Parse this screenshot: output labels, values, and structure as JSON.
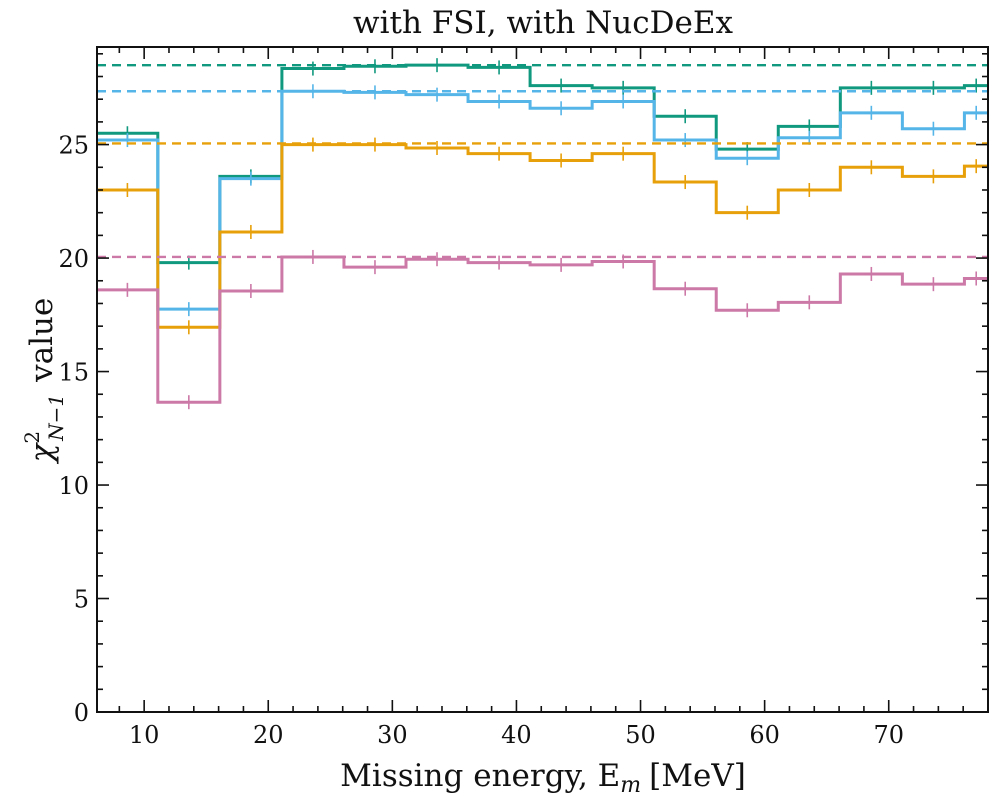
{
  "chart_data": {
    "type": "step",
    "title": "with FSI, with NucDeEx",
    "xlabel": "Missing energy, E",
    "xlabel_sub": "m",
    "xlabel_unit": "[MeV]",
    "ylabel": "χ",
    "ylabel_sup": "2",
    "ylabel_sub": "N−1",
    "ylabel_tail": "value",
    "xlim": [
      6.2,
      78
    ],
    "ylim": [
      0,
      29.3
    ],
    "xticks": [
      10,
      20,
      30,
      40,
      50,
      60,
      70
    ],
    "xtick_labels": [
      "10",
      "20",
      "30",
      "40",
      "50",
      "60",
      "70"
    ],
    "yticks": [
      0,
      5,
      10,
      15,
      20,
      25
    ],
    "ytick_labels": [
      "0",
      "5",
      "10",
      "15",
      "20",
      "25"
    ],
    "bin_edges": [
      6.2,
      11.1,
      16.1,
      21.1,
      26.1,
      31.1,
      36.1,
      41.1,
      46.1,
      51.1,
      56.1,
      61.1,
      66.1,
      71.1,
      76.1,
      78
    ],
    "series": [
      {
        "name": "teal",
        "color": "#11997f",
        "values": [
          25.5,
          19.8,
          23.6,
          28.35,
          28.45,
          28.5,
          28.4,
          27.6,
          27.5,
          26.25,
          24.8,
          25.8,
          27.5,
          27.5,
          27.6
        ],
        "reference": 28.5
      },
      {
        "name": "sky",
        "color": "#55b5e8",
        "values": [
          25.2,
          17.75,
          23.5,
          27.35,
          27.3,
          27.2,
          26.9,
          26.6,
          26.9,
          25.2,
          24.4,
          25.3,
          26.4,
          25.7,
          26.4
        ],
        "reference": 27.35
      },
      {
        "name": "orange",
        "color": "#e8a00a",
        "values": [
          23.0,
          16.95,
          21.15,
          25.0,
          25.0,
          24.85,
          24.6,
          24.3,
          24.6,
          23.35,
          22.0,
          23.0,
          24.0,
          23.6,
          24.05
        ],
        "reference": 25.05
      },
      {
        "name": "pink",
        "color": "#cc79a7",
        "values": [
          18.6,
          13.65,
          18.55,
          20.05,
          19.6,
          19.95,
          19.8,
          19.7,
          19.85,
          18.65,
          17.7,
          18.05,
          19.3,
          18.85,
          19.1
        ],
        "reference": 20.05
      }
    ]
  }
}
